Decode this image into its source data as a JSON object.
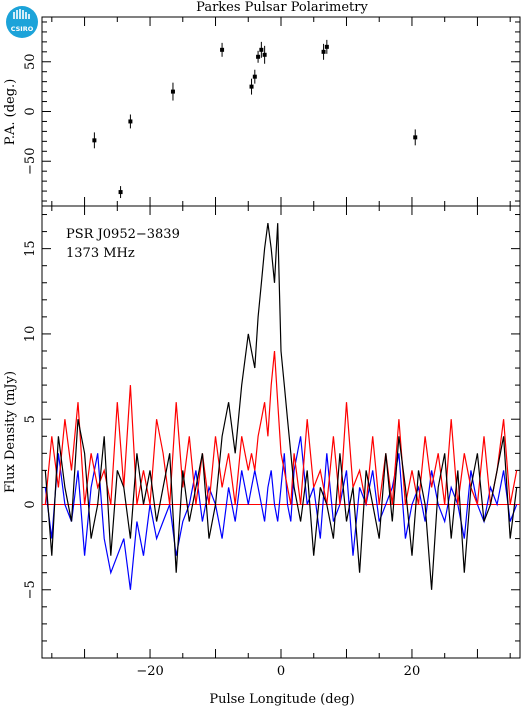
{
  "title": "Parkes Pulsar Polarimetry",
  "logo": {
    "text": "CSIRO",
    "color": "#1ca3d9"
  },
  "chart_data": [
    {
      "type": "scatter",
      "panel": "position-angle",
      "ylabel": "P.A. (deg.)",
      "xlim": [
        -36.5,
        36.5
      ],
      "ylim": [
        -95,
        95
      ],
      "yticks": [
        -50,
        0,
        50
      ],
      "grid": false,
      "points": [
        {
          "x": -28.5,
          "y": -29,
          "err": 8
        },
        {
          "x": -24.5,
          "y": -81,
          "err": 6
        },
        {
          "x": -23.0,
          "y": -10,
          "err": 7
        },
        {
          "x": -16.5,
          "y": 20,
          "err": 9
        },
        {
          "x": -9.0,
          "y": 62,
          "err": 7
        },
        {
          "x": -4.5,
          "y": 25,
          "err": 8
        },
        {
          "x": -4.0,
          "y": 35,
          "err": 7
        },
        {
          "x": -3.5,
          "y": 55,
          "err": 6
        },
        {
          "x": -3.0,
          "y": 62,
          "err": 8
        },
        {
          "x": -2.5,
          "y": 57,
          "err": 9
        },
        {
          "x": 6.5,
          "y": 60,
          "err": 8
        },
        {
          "x": 7.0,
          "y": 65,
          "err": 7
        },
        {
          "x": 20.5,
          "y": -26,
          "err": 8
        }
      ]
    },
    {
      "type": "line",
      "panel": "profile",
      "annotation": [
        "PSR J0952−3839",
        "1373 MHz"
      ],
      "xlabel": "Pulse Longitude (deg)",
      "ylabel": "Flux Density (mJy)",
      "xlim": [
        -36.5,
        36.5
      ],
      "ylim": [
        -9,
        17.5
      ],
      "xticks": [
        -20,
        0,
        20
      ],
      "yticks": [
        -5,
        0,
        5,
        10,
        15
      ],
      "grid": false,
      "x": [
        -36.0,
        -35.0,
        -34.0,
        -33.0,
        -32.0,
        -31.0,
        -30.0,
        -29.0,
        -28.0,
        -27.0,
        -26.0,
        -25.0,
        -24.0,
        -23.0,
        -22.0,
        -21.0,
        -20.0,
        -19.0,
        -18.0,
        -17.0,
        -16.0,
        -15.0,
        -14.0,
        -13.0,
        -12.0,
        -11.0,
        -10.0,
        -9.0,
        -8.0,
        -7.0,
        -6.0,
        -5.0,
        -4.5,
        -4.0,
        -3.5,
        -3.0,
        -2.5,
        -2.0,
        -1.5,
        -1.0,
        -0.5,
        0.0,
        0.5,
        1.0,
        1.5,
        2.0,
        3.0,
        4.0,
        5.0,
        6.0,
        7.0,
        8.0,
        9.0,
        10.0,
        11.0,
        12.0,
        13.0,
        14.0,
        15.0,
        16.0,
        17.0,
        18.0,
        19.0,
        20.0,
        21.0,
        22.0,
        23.0,
        24.0,
        25.0,
        26.0,
        27.0,
        28.0,
        29.0,
        30.0,
        31.0,
        32.0,
        33.0,
        34.0,
        35.0,
        36.0
      ],
      "series": [
        {
          "color": "#000000",
          "values": [
            2,
            -3,
            4,
            1,
            -1,
            5,
            3,
            -2,
            0,
            4,
            -3,
            2,
            1,
            -2,
            3,
            0,
            2,
            -1,
            1,
            3,
            -4,
            2,
            -1,
            1,
            3,
            -2,
            0,
            4,
            6,
            3,
            7,
            10,
            9,
            8,
            11,
            13,
            15,
            16.5,
            15,
            13,
            16.5,
            9,
            7,
            5,
            3,
            1,
            -1,
            2,
            -3,
            1,
            0,
            -2,
            3,
            -1,
            1,
            -4,
            2,
            0,
            -2,
            3,
            -1,
            4,
            1,
            -3,
            2,
            0,
            -5,
            1,
            3,
            -2,
            2,
            -4,
            1,
            3,
            -1,
            0,
            2,
            4,
            -2,
            1
          ]
        },
        {
          "color": "#ff0000",
          "values": [
            0,
            4,
            1,
            5,
            2,
            6,
            0,
            3,
            1,
            2,
            0,
            6,
            1,
            7,
            0,
            2,
            0,
            5,
            3,
            0,
            6,
            1,
            4,
            0,
            3,
            0,
            4,
            1,
            3,
            0,
            4,
            2,
            3,
            2,
            4,
            5,
            6,
            4,
            7,
            9,
            6,
            3,
            2,
            1,
            0,
            3,
            0,
            5,
            1,
            2,
            0,
            4,
            0,
            6,
            1,
            2,
            0,
            4,
            0,
            3,
            0,
            5,
            0,
            2,
            0,
            4,
            1,
            3,
            0,
            5,
            0,
            3,
            1,
            0,
            4,
            0,
            2,
            5,
            0,
            2
          ]
        },
        {
          "color": "#0000ff",
          "values": [
            1,
            -2,
            3,
            0,
            -1,
            2,
            -3,
            1,
            3,
            -2,
            -4,
            -3,
            -2,
            -5,
            -1,
            -3,
            0,
            -2,
            -1,
            0,
            -3,
            -1,
            0,
            2,
            -1,
            1,
            0,
            -2,
            1,
            -1,
            2,
            0,
            1,
            2,
            1,
            0,
            -1,
            1,
            2,
            0,
            -1,
            1,
            3,
            0,
            -1,
            2,
            4,
            0,
            1,
            -2,
            3,
            -1,
            0,
            2,
            -3,
            1,
            0,
            2,
            -1,
            0,
            1,
            3,
            -2,
            0,
            1,
            -1,
            2,
            0,
            -1,
            1,
            0,
            -2,
            2,
            0,
            -1,
            1,
            0,
            2,
            -1,
            0
          ]
        }
      ]
    }
  ]
}
